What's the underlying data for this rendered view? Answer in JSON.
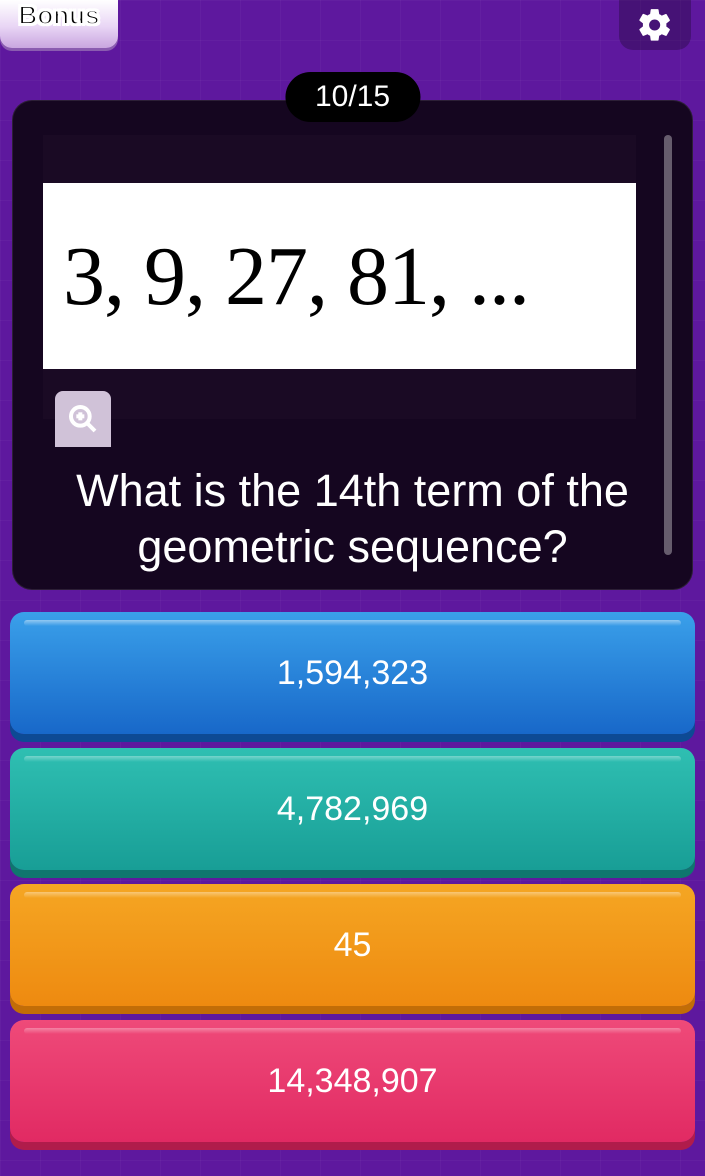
{
  "header": {
    "bonus_label": "Bonus"
  },
  "progress": {
    "text": "10/15"
  },
  "question": {
    "sequence_display": "3, 9, 27, 81, ...",
    "prompt": "What is the 14th term of the geometric sequence?"
  },
  "answers": [
    {
      "label": "1,594,323",
      "bg_top": "#3aa0ea",
      "bg_bottom": "#1868c9",
      "shadow": "#0d4a94",
      "glare": "rgba(255,255,255,0.45)"
    },
    {
      "label": "4,782,969",
      "bg_top": "#2fbfb2",
      "bg_bottom": "#189e96",
      "shadow": "#0f766e",
      "glare": "rgba(255,255,255,0.35)"
    },
    {
      "label": "45",
      "bg_top": "#f5a623",
      "bg_bottom": "#ee8a10",
      "shadow": "#c26d07",
      "glare": "rgba(255,255,255,0.38)"
    },
    {
      "label": "14,348,907",
      "bg_top": "#ef4a79",
      "bg_bottom": "#e12a63",
      "shadow": "#b01c4b",
      "glare": "rgba(255,255,255,0.32)"
    }
  ],
  "colors": {
    "page_bg": "#5e189e",
    "card_bg": "#150620",
    "pill_bg": "#000000",
    "text": "#ffffff"
  }
}
